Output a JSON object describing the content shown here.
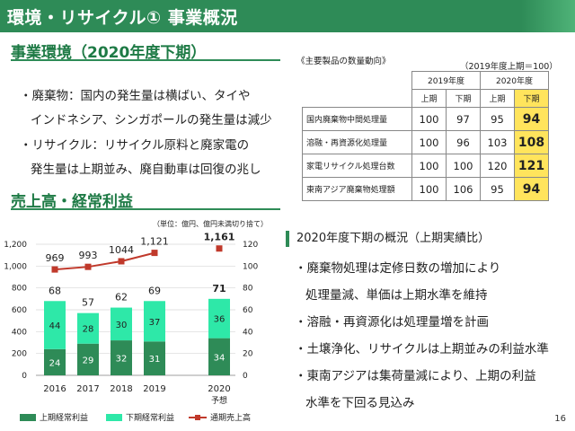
{
  "header": {
    "title": "環境・リサイクル① 事業概況"
  },
  "env_section": {
    "title": "事業環境（2020年度下期）",
    "bullets": [
      "・廃棄物：国内の発生量は横ばい、タイや",
      "インドネシア、シンガポールの発生量は減少",
      "・リサイクル：リサイクル原料と廃家電の",
      "発生量は上期並み、廃自動車は回復の兆し"
    ]
  },
  "qty_table": {
    "caption": "《主要製品の数量動向》",
    "base_note": "（2019年度上期＝100）",
    "year_headers": [
      "2019年度",
      "2020年度"
    ],
    "half_headers": [
      "上期",
      "下期",
      "上期",
      "下期"
    ],
    "rows": [
      {
        "label": "国内廃棄物中間処理量",
        "values": [
          "100",
          "97",
          "95",
          "94"
        ]
      },
      {
        "label": "溶融・再資源化処理量",
        "values": [
          "100",
          "96",
          "103",
          "108"
        ]
      },
      {
        "label": "家電リサイクル処理台数",
        "values": [
          "100",
          "100",
          "120",
          "121"
        ]
      },
      {
        "label": "東南アジア廃棄物処理額",
        "values": [
          "100",
          "106",
          "95",
          "94"
        ]
      }
    ]
  },
  "sales_section": {
    "title": "売上高・経常利益"
  },
  "chart_data": {
    "type": "bar",
    "note": "（単位：億円、億円未満切り捨て）",
    "categories": [
      "2016",
      "2017",
      "2018",
      "2019",
      "2020"
    ],
    "category_sub": [
      "",
      "",
      "",
      "",
      "予想"
    ],
    "y_left_ticks": [
      "0",
      "200",
      "400",
      "600",
      "800",
      "1,000",
      "1,200"
    ],
    "y_right_ticks": [
      "0",
      "20",
      "40",
      "60",
      "80",
      "100",
      "120"
    ],
    "ylim_left": [
      0,
      1200
    ],
    "ylim_right": [
      0,
      120
    ],
    "series": [
      {
        "name": "上期経常利益",
        "values": [
          24,
          29,
          32,
          31,
          34
        ],
        "color": "#2e8b57"
      },
      {
        "name": "下期経常利益",
        "values": [
          44,
          28,
          30,
          37,
          36
        ],
        "color": "#2ee8a8"
      },
      {
        "name": "通期売上高",
        "values": [
          969,
          993,
          1044,
          1121,
          1161
        ],
        "color": "#c0392b"
      }
    ],
    "totals": [
      68,
      57,
      62,
      69,
      71
    ],
    "sales_labels": [
      "969",
      "993",
      "1044",
      "1,121",
      "1,161"
    ],
    "inner_labels_first": [
      "24",
      "29",
      "32",
      "31",
      "34"
    ],
    "inner_labels_second": [
      "44",
      "28",
      "30",
      "37",
      "36"
    ],
    "total_labels": [
      "68",
      "57",
      "62",
      "69",
      "71"
    ]
  },
  "overview": {
    "title": "2020年度下期の概況（上期実績比）",
    "items": [
      "・廃棄物処理は定修日数の増加により",
      "処理量減、単価は上期水準を維持",
      "・溶融・再資源化は処理量増を計画",
      "・土壌浄化、リサイクルは上期並みの利益水準",
      "・東南アジアは集荷量減により、上期の利益",
      "水準を下回る見込み"
    ]
  },
  "page": {
    "number": "16"
  }
}
